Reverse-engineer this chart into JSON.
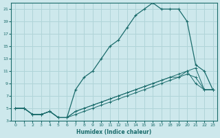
{
  "xlabel": "Humidex (Indice chaleur)",
  "background_color": "#cde8ec",
  "grid_color": "#b0d4d8",
  "line_color": "#1a6b6b",
  "xlim": [
    -0.5,
    23.5
  ],
  "ylim": [
    3,
    22
  ],
  "xticks": [
    0,
    1,
    2,
    3,
    4,
    5,
    6,
    7,
    8,
    9,
    10,
    11,
    12,
    13,
    14,
    15,
    16,
    17,
    18,
    19,
    20,
    21,
    22,
    23
  ],
  "yticks": [
    3,
    5,
    7,
    9,
    11,
    13,
    15,
    17,
    19,
    21
  ],
  "line1_x": [
    0,
    1,
    2,
    3,
    4,
    5,
    6,
    7,
    8,
    9,
    10,
    11,
    12,
    13,
    14,
    15,
    16,
    17,
    18,
    19,
    20,
    21,
    22,
    23
  ],
  "line1_y": [
    5,
    5,
    4,
    4,
    4.5,
    3.5,
    3.5,
    8,
    10,
    11,
    13,
    15,
    16,
    18,
    20,
    21,
    22,
    21,
    21,
    21,
    19,
    12,
    11,
    8
  ],
  "line2_x": [
    0,
    1,
    2,
    3,
    4,
    5,
    6,
    7,
    8,
    9,
    10,
    11,
    12,
    13,
    14,
    15,
    16,
    17,
    18,
    19,
    20,
    21,
    22,
    23
  ],
  "line2_y": [
    5,
    5,
    4,
    4,
    4.5,
    3.5,
    3.5,
    4.5,
    5,
    5.5,
    6,
    6.5,
    7,
    7.5,
    8,
    8.5,
    9,
    9.5,
    10,
    10.5,
    11,
    11.5,
    8,
    8
  ],
  "line3_x": [
    0,
    1,
    2,
    3,
    4,
    5,
    6,
    7,
    8,
    9,
    10,
    11,
    12,
    13,
    14,
    15,
    16,
    17,
    18,
    19,
    20,
    21,
    22,
    23
  ],
  "line3_y": [
    5,
    5,
    4,
    4,
    4.5,
    3.5,
    3.5,
    4.5,
    5,
    5.5,
    6,
    6.5,
    7,
    7.5,
    8,
    8.5,
    9,
    9.5,
    10,
    10,
    10.5,
    10,
    8,
    8
  ],
  "line4_x": [
    0,
    1,
    2,
    3,
    4,
    5,
    6,
    7,
    8,
    9,
    10,
    11,
    12,
    13,
    14,
    15,
    16,
    17,
    18,
    19,
    20,
    21,
    22,
    23
  ],
  "line4_y": [
    5,
    5,
    4,
    4,
    4.5,
    3.5,
    3.5,
    4,
    4.5,
    5,
    5.5,
    6,
    6.5,
    7,
    7.5,
    8,
    8.5,
    9,
    9.5,
    10,
    11,
    9,
    8,
    8
  ]
}
